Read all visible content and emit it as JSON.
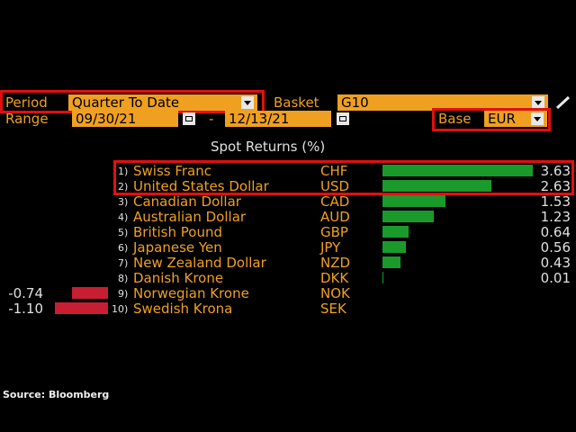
{
  "controls": {
    "period_label": "Period",
    "period_value": "Quarter To Date",
    "basket_label": "Basket",
    "basket_value": "G10",
    "range_label": "Range",
    "range_start": "09/30/21",
    "range_sep": "-",
    "range_end": "12/13/21",
    "base_label": "Base",
    "base_value": "EUR"
  },
  "chart_title": "Spot Returns (%)",
  "rows": [
    {
      "num": "1)",
      "name": "Swiss Franc",
      "code": "CHF",
      "value": "3.63"
    },
    {
      "num": "2)",
      "name": "United States Dollar",
      "code": "USD",
      "value": "2.63"
    },
    {
      "num": "3)",
      "name": "Canadian Dollar",
      "code": "CAD",
      "value": "1.53"
    },
    {
      "num": "4)",
      "name": "Australian Dollar",
      "code": "AUD",
      "value": "1.23"
    },
    {
      "num": "5)",
      "name": "British Pound",
      "code": "GBP",
      "value": "0.64"
    },
    {
      "num": "6)",
      "name": "Japanese Yen",
      "code": "JPY",
      "value": "0.56"
    },
    {
      "num": "7)",
      "name": "New Zealand Dollar",
      "code": "NZD",
      "value": "0.43"
    },
    {
      "num": "8)",
      "name": "Danish Krone",
      "code": "DKK",
      "value": "0.01"
    },
    {
      "num": "9)",
      "name": "Norwegian Krone",
      "code": "NOK",
      "value": "-0.74"
    },
    {
      "num": "10)",
      "name": "Swedish Krona",
      "code": "SEK",
      "value": "-1.10"
    }
  ],
  "chart_data": {
    "type": "bar",
    "orientation": "horizontal",
    "title": "Spot Returns (%)",
    "categories": [
      "CHF",
      "USD",
      "CAD",
      "AUD",
      "GBP",
      "JPY",
      "NZD",
      "DKK",
      "NOK",
      "SEK"
    ],
    "values": [
      3.63,
      2.63,
      1.53,
      1.23,
      0.64,
      0.56,
      0.43,
      0.01,
      -0.74,
      -1.1
    ],
    "colors": {
      "positive": "#1a9a2a",
      "negative": "#c81e32"
    }
  },
  "source": "Source: Bloomberg",
  "colors": {
    "accent": "#f0a020",
    "highlight": "#e01010",
    "positive": "#1a9a2a",
    "negative": "#c81e32"
  }
}
